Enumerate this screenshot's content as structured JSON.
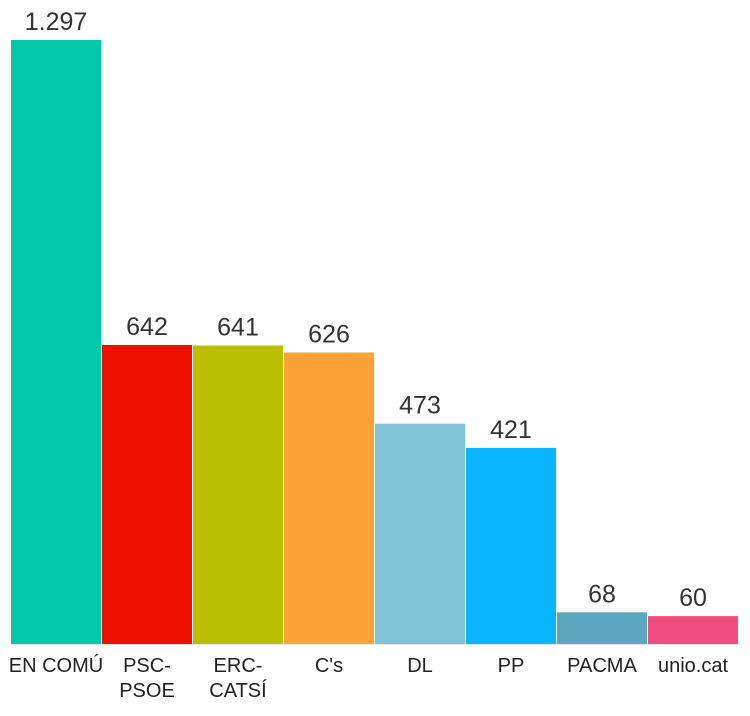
{
  "chart_data": {
    "type": "bar",
    "title": "",
    "xlabel": "",
    "ylabel": "",
    "ylim": [
      0,
      1297
    ],
    "grid": false,
    "legend": "none",
    "categories": [
      [
        "EN COMÚ"
      ],
      [
        "PSC-",
        "PSOE"
      ],
      [
        "ERC-",
        "CATSÍ"
      ],
      [
        "C's"
      ],
      [
        "DL"
      ],
      [
        "PP"
      ],
      [
        "PACMA"
      ],
      [
        "unio.cat"
      ]
    ],
    "values": [
      1297,
      642,
      641,
      626,
      473,
      421,
      68,
      60
    ],
    "value_labels": [
      "1.297",
      "642",
      "641",
      "626",
      "473",
      "421",
      "68",
      "60"
    ],
    "colors": [
      "#00c8a8",
      "#ee0f00",
      "#bcbf00",
      "#faa236",
      "#7fc3d6",
      "#0ab5ff",
      "#5aa8c0",
      "#f04c80"
    ]
  }
}
